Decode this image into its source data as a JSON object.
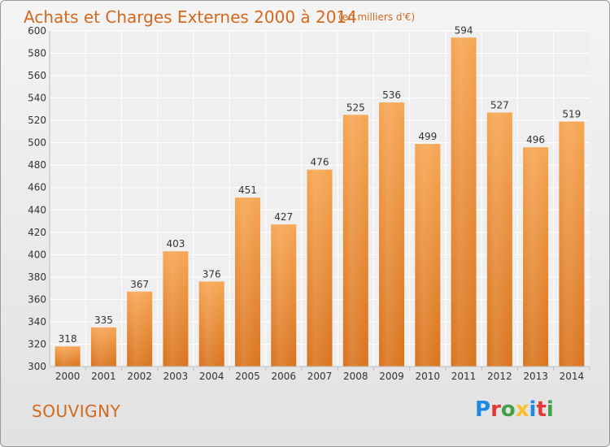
{
  "header": {
    "title": "Achats et Charges Externes 2000 à 2014",
    "unit_note": "(en milliers d'€)"
  },
  "footer": {
    "city": "SOUVIGNY",
    "logo_text": "Proxiti",
    "logo_colors": [
      "#1e88e5",
      "#e53935",
      "#43a047",
      "#fbc02d",
      "#1e88e5",
      "#e53935",
      "#43a047"
    ]
  },
  "chart_data": {
    "type": "bar",
    "title": "Achats et Charges Externes 2000 à 2014",
    "subtitle": "(en milliers d'€)",
    "xlabel": "",
    "ylabel": "",
    "categories": [
      "2000",
      "2001",
      "2002",
      "2003",
      "2004",
      "2005",
      "2006",
      "2007",
      "2008",
      "2009",
      "2010",
      "2011",
      "2012",
      "2013",
      "2014"
    ],
    "values": [
      318,
      335,
      367,
      403,
      376,
      451,
      427,
      476,
      525,
      536,
      499,
      594,
      527,
      496,
      519
    ],
    "ylim": [
      300,
      600
    ],
    "yticks": [
      300,
      320,
      340,
      360,
      380,
      400,
      420,
      440,
      460,
      480,
      500,
      520,
      540,
      560,
      580,
      600
    ],
    "grid": true,
    "bar_color_top": "#f6a552",
    "bar_color_bottom": "#d9731d"
  }
}
